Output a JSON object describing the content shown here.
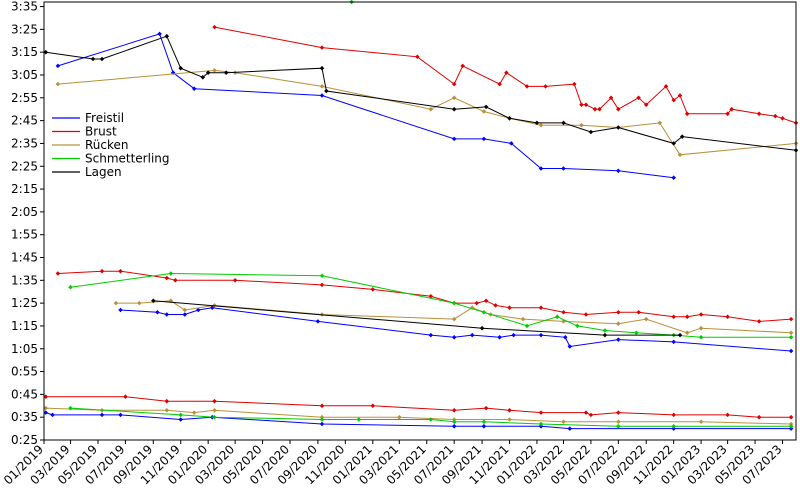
{
  "chart_data": {
    "type": "line",
    "title": "",
    "xlabel": "",
    "ylabel": "",
    "x_tick_labels": [
      "01/2019",
      "03/2019",
      "05/2019",
      "07/2019",
      "09/2019",
      "11/2019",
      "01/2020",
      "03/2020",
      "05/2020",
      "07/2020",
      "09/2020",
      "11/2020",
      "01/2021",
      "03/2021",
      "05/2021",
      "07/2021",
      "09/2021",
      "11/2021",
      "01/2022",
      "03/2022",
      "05/2022",
      "07/2022",
      "09/2022",
      "11/2022",
      "01/2023",
      "03/2023",
      "05/2023",
      "07/2023"
    ],
    "y_tick_labels": [
      "0:25",
      "0:35",
      "0:45",
      "0:55",
      "1:05",
      "1:15",
      "1:25",
      "1:35",
      "1:45",
      "1:55",
      "2:05",
      "2:15",
      "2:25",
      "2:35",
      "2:45",
      "2:55",
      "3:05",
      "3:15",
      "3:25",
      "3:35"
    ],
    "xlim": [
      "2019-01-01",
      "2023-07-31"
    ],
    "ylim_seconds": [
      25,
      217
    ],
    "grid": false,
    "legend_position": "left",
    "series": [
      {
        "name": "Freistil",
        "color": "#0000ff",
        "segments": [
          [
            [
              "2019-02-01",
              189
            ],
            [
              "2019-09-15",
              203
            ],
            [
              "2019-10-15",
              186
            ],
            [
              "2019-12-01",
              179
            ],
            [
              "2020-09-10",
              176
            ],
            [
              "2021-07-01",
              157
            ],
            [
              "2021-09-05",
              157
            ],
            [
              "2021-11-05",
              155
            ],
            [
              "2022-01-10",
              144
            ],
            [
              "2022-03-01",
              144
            ],
            [
              "2022-07-01",
              143
            ],
            [
              "2022-11-01",
              140
            ]
          ],
          [
            [
              "2019-06-20",
              82
            ],
            [
              "2019-09-10",
              81
            ],
            [
              "2019-10-01",
              80
            ],
            [
              "2019-11-10",
              80
            ],
            [
              "2019-12-10",
              82
            ],
            [
              "2020-01-10",
              83
            ],
            [
              "2020-09-01",
              77
            ],
            [
              "2021-05-10",
              71
            ],
            [
              "2021-07-01",
              70
            ],
            [
              "2021-08-10",
              71
            ],
            [
              "2021-10-10",
              70
            ],
            [
              "2021-11-10",
              71
            ],
            [
              "2022-01-10",
              71
            ],
            [
              "2022-03-05",
              70
            ],
            [
              "2022-03-15",
              66
            ],
            [
              "2022-07-01",
              69
            ],
            [
              "2022-11-01",
              68
            ],
            [
              "2023-07-20",
              64
            ]
          ],
          [
            [
              "2019-01-05",
              37
            ],
            [
              "2019-01-20",
              36
            ],
            [
              "2019-05-10",
              36
            ],
            [
              "2019-06-20",
              36
            ],
            [
              "2019-11-01",
              34
            ],
            [
              "2020-01-10",
              35
            ],
            [
              "2020-09-10",
              32
            ],
            [
              "2021-07-01",
              31
            ],
            [
              "2021-09-05",
              31
            ],
            [
              "2022-01-10",
              31
            ],
            [
              "2022-03-15",
              30
            ],
            [
              "2022-11-01",
              30
            ],
            [
              "2023-07-20",
              30
            ]
          ]
        ]
      },
      {
        "name": "Brust",
        "color": "#e00000",
        "segments": [
          [
            [
              "2020-01-15",
              206
            ],
            [
              "2020-09-10",
              197
            ],
            [
              "2021-04-10",
              193
            ],
            [
              "2021-07-01",
              181
            ],
            [
              "2021-07-20",
              189
            ],
            [
              "2021-10-10",
              181
            ],
            [
              "2021-10-25",
              186
            ],
            [
              "2021-12-10",
              180
            ],
            [
              "2022-01-20",
              180
            ],
            [
              "2022-03-25",
              181
            ],
            [
              "2022-04-10",
              172
            ],
            [
              "2022-04-20",
              172
            ],
            [
              "2022-05-10",
              170
            ],
            [
              "2022-05-20",
              170
            ],
            [
              "2022-06-15",
              175
            ],
            [
              "2022-07-01",
              170
            ],
            [
              "2022-08-15",
              175
            ],
            [
              "2022-09-01",
              172
            ],
            [
              "2022-10-15",
              180
            ],
            [
              "2022-11-01",
              174
            ],
            [
              "2022-11-15",
              176
            ],
            [
              "2022-12-01",
              168
            ],
            [
              "2023-03-01",
              168
            ],
            [
              "2023-03-10",
              170
            ],
            [
              "2023-05-10",
              168
            ],
            [
              "2023-06-15",
              167
            ],
            [
              "2023-07-01",
              166
            ],
            [
              "2023-07-31",
              164
            ]
          ],
          [
            [
              "2019-02-01",
              98
            ],
            [
              "2019-05-10",
              99
            ],
            [
              "2019-06-20",
              99
            ],
            [
              "2019-10-01",
              96
            ],
            [
              "2019-10-20",
              95
            ],
            [
              "2020-03-01",
              95
            ],
            [
              "2020-09-10",
              93
            ],
            [
              "2021-01-01",
              91
            ],
            [
              "2021-05-10",
              88
            ],
            [
              "2021-07-01",
              85
            ],
            [
              "2021-08-20",
              85
            ],
            [
              "2021-09-10",
              86
            ],
            [
              "2021-10-01",
              84
            ],
            [
              "2021-11-01",
              83
            ],
            [
              "2022-01-10",
              83
            ],
            [
              "2022-03-01",
              81
            ],
            [
              "2022-04-20",
              80
            ],
            [
              "2022-07-01",
              81
            ],
            [
              "2022-08-15",
              81
            ],
            [
              "2022-11-01",
              79
            ],
            [
              "2022-12-01",
              79
            ],
            [
              "2023-01-01",
              80
            ],
            [
              "2023-03-01",
              79
            ],
            [
              "2023-05-10",
              77
            ],
            [
              "2023-07-20",
              78
            ]
          ],
          [
            [
              "2019-01-05",
              44
            ],
            [
              "2019-07-01",
              44
            ],
            [
              "2019-10-01",
              42
            ],
            [
              "2020-01-15",
              42
            ],
            [
              "2020-09-10",
              40
            ],
            [
              "2021-01-01",
              40
            ],
            [
              "2021-07-01",
              38
            ],
            [
              "2021-09-10",
              39
            ],
            [
              "2021-11-01",
              38
            ],
            [
              "2022-01-10",
              37
            ],
            [
              "2022-04-20",
              37
            ],
            [
              "2022-05-01",
              36
            ],
            [
              "2022-07-01",
              37
            ],
            [
              "2022-11-01",
              36
            ],
            [
              "2023-03-01",
              36
            ],
            [
              "2023-05-10",
              35
            ],
            [
              "2023-07-20",
              35
            ]
          ]
        ]
      },
      {
        "name": "Rücken",
        "color": "#b8903a",
        "segments": [
          [
            [
              "2019-02-01",
              181
            ],
            [
              "2020-01-15",
              187
            ],
            [
              "2020-03-01",
              186
            ],
            [
              "2020-09-10",
              180
            ],
            [
              "2021-05-10",
              170
            ],
            [
              "2021-07-01",
              175
            ],
            [
              "2021-09-05",
              169
            ],
            [
              "2021-11-01",
              166
            ],
            [
              "2022-01-10",
              163
            ],
            [
              "2022-04-10",
              163
            ],
            [
              "2022-07-01",
              162
            ],
            [
              "2022-10-01",
              164
            ],
            [
              "2022-11-15",
              150
            ],
            [
              "2023-07-31",
              155
            ]
          ],
          [
            [
              "2019-06-10",
              85
            ],
            [
              "2019-08-01",
              85
            ],
            [
              "2019-10-10",
              86
            ],
            [
              "2019-11-10",
              82
            ],
            [
              "2020-01-15",
              84
            ],
            [
              "2020-09-10",
              80
            ],
            [
              "2021-07-01",
              78
            ],
            [
              "2021-08-10",
              83
            ],
            [
              "2021-09-20",
              80
            ],
            [
              "2021-12-01",
              78
            ],
            [
              "2022-03-01",
              77
            ],
            [
              "2022-07-01",
              76
            ],
            [
              "2022-09-01",
              78
            ],
            [
              "2022-12-01",
              72
            ],
            [
              "2023-01-01",
              74
            ],
            [
              "2023-07-20",
              72
            ]
          ],
          [
            [
              "2019-01-05",
              39
            ],
            [
              "2019-05-10",
              38
            ],
            [
              "2019-10-01",
              38
            ],
            [
              "2019-12-01",
              37
            ],
            [
              "2020-01-15",
              38
            ],
            [
              "2020-09-10",
              35
            ],
            [
              "2021-03-01",
              35
            ],
            [
              "2021-07-01",
              34
            ],
            [
              "2021-11-01",
              34
            ],
            [
              "2022-03-01",
              33
            ],
            [
              "2022-07-01",
              33
            ],
            [
              "2023-01-01",
              33
            ],
            [
              "2023-07-20",
              32
            ]
          ]
        ]
      },
      {
        "name": "Schmetterling",
        "color": "#00cc00",
        "segments": [
          [
            [
              "2020-11-15",
              217
            ]
          ],
          [
            [
              "2019-03-01",
              92
            ],
            [
              "2019-10-10",
              98
            ],
            [
              "2020-09-10",
              97
            ],
            [
              "2021-07-01",
              85
            ],
            [
              "2021-09-05",
              81
            ],
            [
              "2021-12-10",
              75
            ],
            [
              "2022-02-15",
              79
            ],
            [
              "2022-04-01",
              75
            ],
            [
              "2022-06-01",
              73
            ],
            [
              "2022-08-10",
              72
            ],
            [
              "2022-11-01",
              71
            ],
            [
              "2023-01-01",
              70
            ],
            [
              "2023-07-20",
              70
            ]
          ],
          [
            [
              "2019-03-01",
              39
            ],
            [
              "2019-11-01",
              36
            ],
            [
              "2020-01-15",
              35
            ],
            [
              "2020-09-10",
              34
            ],
            [
              "2020-12-01",
              34
            ],
            [
              "2021-05-10",
              34
            ],
            [
              "2021-07-01",
              33
            ],
            [
              "2021-09-05",
              33
            ],
            [
              "2022-01-10",
              32
            ],
            [
              "2022-07-01",
              31
            ],
            [
              "2022-11-01",
              31
            ],
            [
              "2023-07-20",
              31
            ]
          ]
        ]
      },
      {
        "name": "Lagen",
        "color": "#000000",
        "segments": [
          [
            [
              "2019-01-05",
              195
            ],
            [
              "2019-04-20",
              192
            ],
            [
              "2019-05-10",
              192
            ],
            [
              "2019-10-01",
              202
            ],
            [
              "2019-11-01",
              188
            ],
            [
              "2019-12-20",
              184
            ],
            [
              "2020-01-01",
              186
            ],
            [
              "2020-02-10",
              186
            ],
            [
              "2020-09-10",
              188
            ],
            [
              "2020-09-20",
              178
            ],
            [
              "2021-07-01",
              170
            ],
            [
              "2021-09-10",
              171
            ],
            [
              "2021-11-01",
              166
            ],
            [
              "2022-01-01",
              164
            ],
            [
              "2022-03-01",
              164
            ],
            [
              "2022-05-01",
              160
            ],
            [
              "2022-07-01",
              162
            ],
            [
              "2022-11-01",
              155
            ],
            [
              "2022-11-20",
              158
            ],
            [
              "2023-07-31",
              152
            ]
          ],
          [
            [
              "2019-09-01",
              86
            ],
            [
              "2021-09-01",
              74
            ],
            [
              "2022-06-01",
              71
            ],
            [
              "2022-11-15",
              71
            ]
          ]
        ]
      }
    ]
  }
}
